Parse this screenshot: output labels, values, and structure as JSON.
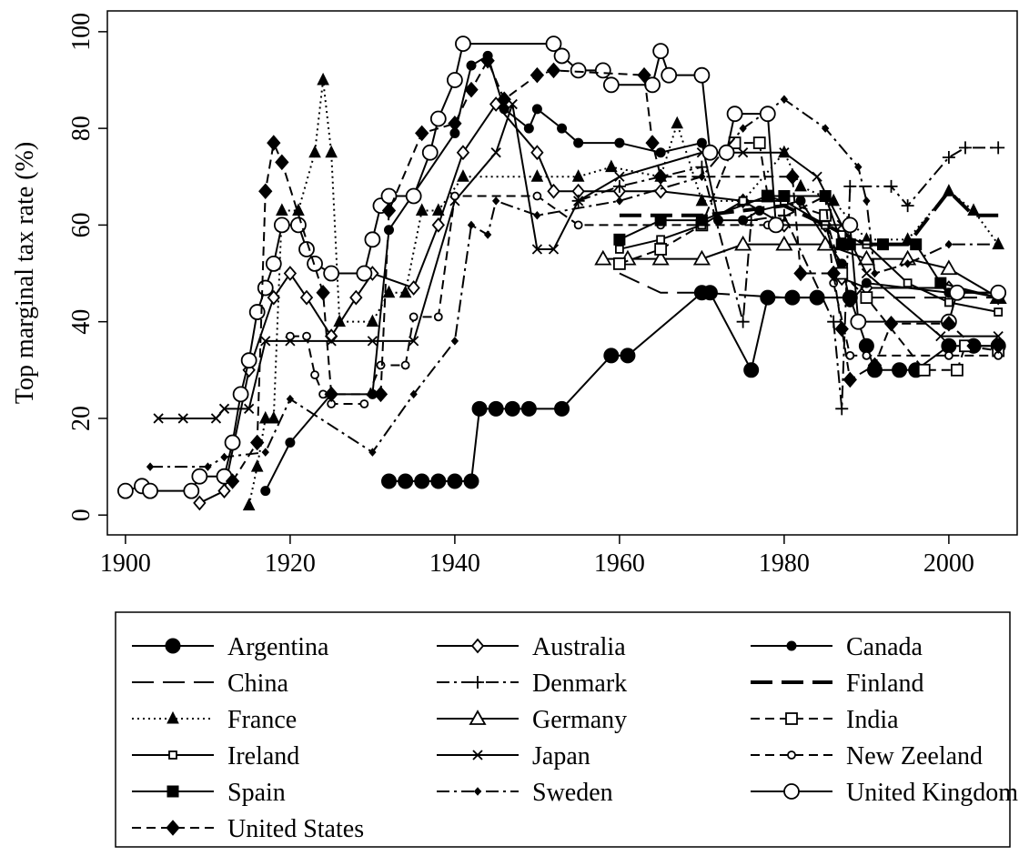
{
  "chart_data": {
    "type": "line",
    "ylabel": "Top marginal tax rate (%)",
    "xlim": [
      1897.8,
      2008.3
    ],
    "ylim": [
      -4.1,
      104.3
    ],
    "xticks": [
      1900,
      1920,
      1940,
      1960,
      1980,
      2000
    ],
    "yticks": [
      0,
      20,
      40,
      60,
      80,
      100
    ],
    "series": [
      {
        "name": "Argentina",
        "color": "#000000",
        "line": "solid",
        "marker": "circle-filled-large",
        "x": [
          1932,
          1934,
          1936,
          1938,
          1940,
          1942,
          1943,
          1945,
          1947,
          1949,
          1953,
          1959,
          1961,
          1970,
          1971,
          1976,
          1978,
          1981,
          1984,
          1988,
          1990,
          1991,
          1994,
          1996,
          2000,
          2003,
          2006
        ],
        "values": [
          7,
          7,
          7,
          7,
          7,
          7,
          22,
          22,
          22,
          22,
          22,
          33,
          33,
          46,
          46,
          30,
          45,
          45,
          45,
          45,
          35,
          30,
          30,
          30,
          35,
          35,
          35
        ]
      },
      {
        "name": "Australia",
        "color": "#000000",
        "line": "solid",
        "marker": "diamond-open",
        "x": [
          1909,
          1912,
          1915,
          1918,
          1920,
          1922,
          1925,
          1928,
          1930,
          1935,
          1938,
          1941,
          1945,
          1950,
          1952,
          1955,
          1960,
          1965,
          1975,
          1980,
          1985,
          1987,
          1990,
          2000,
          2006
        ],
        "values": [
          2.5,
          5,
          30,
          45,
          50,
          45,
          37,
          45,
          50,
          47,
          60,
          75,
          85,
          75,
          67,
          67,
          67,
          67,
          65,
          60,
          60,
          49,
          47,
          47,
          45
        ]
      },
      {
        "name": "Canada",
        "color": "#000000",
        "line": "solid",
        "marker": "circle-filled-small",
        "x": [
          1917,
          1920,
          1925,
          1930,
          1932,
          1940,
          1942,
          1944,
          1946,
          1949,
          1950,
          1953,
          1955,
          1960,
          1965,
          1970,
          1972,
          1975,
          1977,
          1982,
          1987,
          1988,
          1990,
          2000,
          2006
        ],
        "values": [
          5,
          15,
          25,
          25,
          59,
          79,
          93,
          95,
          84,
          80,
          84,
          80,
          77,
          77,
          75,
          77,
          61,
          61,
          63,
          65,
          52,
          44,
          48,
          46,
          46
        ]
      },
      {
        "name": "China",
        "color": "#000000",
        "line": "longdash",
        "marker": "none",
        "x": [
          1960,
          1965,
          1970,
          1980,
          2006
        ],
        "values": [
          50,
          46,
          46,
          45,
          45
        ]
      },
      {
        "name": "Denmark",
        "color": "#000000",
        "line": "dashdot",
        "marker": "plus",
        "x": [
          1955,
          1960,
          1970,
          1975,
          1976,
          1980,
          1986,
          1987,
          1988,
          1993,
          1995,
          2000,
          2002,
          2006
        ],
        "values": [
          65,
          68,
          72,
          40,
          61,
          62,
          40,
          22,
          68,
          68,
          64,
          74,
          76,
          76
        ]
      },
      {
        "name": "Finland",
        "color": "#000000",
        "line": "thick-longdash",
        "marker": "none",
        "x": [
          1960,
          1970,
          1975,
          1980,
          1990,
          1995,
          2000,
          2003,
          2006
        ],
        "values": [
          62,
          62,
          63,
          64,
          56,
          56,
          67,
          62,
          62
        ]
      },
      {
        "name": "France",
        "color": "#000000",
        "line": "dotted",
        "marker": "triangle-filled",
        "x": [
          1915,
          1916,
          1917,
          1918,
          1919,
          1921,
          1923,
          1924,
          1925,
          1926,
          1930,
          1932,
          1934,
          1936,
          1938,
          1941,
          1950,
          1955,
          1959,
          1965,
          1967,
          1970,
          1975,
          1980,
          1982,
          1986,
          1990,
          1995,
          2000,
          2003,
          2006
        ],
        "values": [
          2,
          10,
          20,
          20,
          63,
          63,
          75,
          90,
          75,
          40,
          40,
          46,
          46,
          63,
          63,
          70,
          70,
          70,
          72,
          70,
          81,
          65,
          65,
          75,
          68,
          65,
          57,
          57,
          67,
          63,
          56
        ]
      },
      {
        "name": "Germany",
        "color": "#000000",
        "line": "solid",
        "marker": "triangle-open",
        "x": [
          1958,
          1961,
          1965,
          1970,
          1975,
          1980,
          1985,
          1990,
          1995,
          2000,
          2006
        ],
        "values": [
          53,
          53,
          53,
          53,
          56,
          56,
          56,
          53,
          53,
          51,
          45
        ]
      },
      {
        "name": "India",
        "color": "#000000",
        "line": "dashed",
        "marker": "square-open-large",
        "x": [
          1960,
          1965,
          1970,
          1974,
          1977,
          1978,
          1985,
          1987,
          1990,
          1997,
          2001,
          2002,
          2006
        ],
        "values": [
          52,
          55,
          60,
          77,
          77,
          66,
          62,
          50,
          45,
          30,
          30,
          35,
          34
        ]
      },
      {
        "name": "Ireland",
        "color": "#000000",
        "line": "solid",
        "marker": "square-open-small",
        "x": [
          1960,
          1965,
          1970,
          1975,
          1980,
          1985,
          1987,
          1990,
          1995,
          2000,
          2006
        ],
        "values": [
          55,
          57,
          60,
          65,
          65,
          60,
          58,
          56,
          48,
          44,
          42
        ]
      },
      {
        "name": "Japan",
        "color": "#000000",
        "line": "solid",
        "marker": "cross",
        "x": [
          1904,
          1907,
          1911,
          1912,
          1915,
          1917,
          1920,
          1925,
          1930,
          1935,
          1940,
          1945,
          1947,
          1950,
          1952,
          1955,
          1960,
          1970,
          1975,
          1980,
          1984,
          1987,
          1990,
          1999,
          2006
        ],
        "values": [
          20,
          20,
          20,
          22,
          22,
          36,
          36,
          36,
          36,
          36,
          65,
          75,
          85,
          55,
          55,
          65,
          70,
          75,
          75,
          75,
          70,
          60,
          50,
          37,
          37
        ]
      },
      {
        "name": "New Zeeland",
        "color": "#000000",
        "line": "dashed",
        "marker": "circle-open-small",
        "x": [
          1920,
          1922,
          1923,
          1924,
          1925,
          1929,
          1931,
          1934,
          1935,
          1938,
          1940,
          1950,
          1955,
          1965,
          1978,
          1985,
          1986,
          1988,
          1990,
          2000,
          2006
        ],
        "values": [
          37,
          37,
          29,
          25,
          23,
          23,
          31,
          31,
          41,
          41,
          66,
          66,
          60,
          60,
          60,
          66,
          48,
          33,
          33,
          33,
          33
        ]
      },
      {
        "name": "Spain",
        "color": "#000000",
        "line": "solid",
        "marker": "square-filled",
        "x": [
          1960,
          1965,
          1970,
          1978,
          1980,
          1985,
          1987,
          1988,
          1992,
          1996,
          1999,
          2006
        ],
        "values": [
          57,
          61,
          61,
          66,
          66,
          66,
          56,
          56,
          56,
          56,
          48,
          45
        ]
      },
      {
        "name": "Sweden",
        "color": "#000000",
        "line": "dashdot",
        "marker": "diamond-filled-small",
        "x": [
          1903,
          1910,
          1912,
          1917,
          1920,
          1930,
          1935,
          1940,
          1942,
          1944,
          1945,
          1950,
          1960,
          1970,
          1975,
          1980,
          1985,
          1989,
          1990,
          1991,
          1995,
          2000,
          2006
        ],
        "values": [
          10,
          10,
          12,
          13,
          24,
          13,
          25,
          36,
          60,
          58,
          65,
          62,
          65,
          70,
          80,
          86,
          80,
          72,
          65,
          50,
          52,
          56,
          56
        ]
      },
      {
        "name": "United Kingdom",
        "color": "#000000",
        "line": "solid",
        "marker": "circle-open-large",
        "x": [
          1900,
          1902,
          1903,
          1908,
          1909,
          1912,
          1913,
          1914,
          1915,
          1916,
          1917,
          1918,
          1919,
          1921,
          1922,
          1923,
          1925,
          1929,
          1930,
          1931,
          1932,
          1935,
          1937,
          1938,
          1940,
          1941,
          1952,
          1953,
          1955,
          1958,
          1959,
          1964,
          1965,
          1966,
          1970,
          1971,
          1973,
          1974,
          1978,
          1979,
          1988,
          1989,
          2000,
          2001,
          2006
        ],
        "values": [
          5,
          6,
          5,
          5,
          8,
          8,
          15,
          25,
          32,
          42,
          47,
          52,
          60,
          60,
          55,
          52,
          50,
          50,
          57,
          64,
          66,
          66,
          75,
          82,
          90,
          97.5,
          97.5,
          95,
          92,
          92,
          89,
          89,
          96,
          91,
          91,
          75,
          75,
          83,
          83,
          60,
          60,
          40,
          40,
          46,
          46
        ]
      },
      {
        "name": "United States",
        "color": "#000000",
        "line": "dashed",
        "marker": "diamond-filled",
        "x": [
          1913,
          1916,
          1917,
          1918,
          1919,
          1924,
          1925,
          1931,
          1932,
          1936,
          1940,
          1942,
          1944,
          1946,
          1950,
          1952,
          1963,
          1964,
          1965,
          1981,
          1982,
          1986,
          1987,
          1988,
          1991,
          1993,
          2000,
          2003,
          2006
        ],
        "values": [
          7,
          15,
          67,
          77,
          73,
          46,
          25,
          25,
          63,
          79,
          81,
          88,
          94,
          86,
          91,
          92,
          91,
          77,
          70,
          70,
          50,
          50,
          38.5,
          28,
          31,
          39.6,
          39.6,
          35,
          35
        ]
      }
    ]
  }
}
